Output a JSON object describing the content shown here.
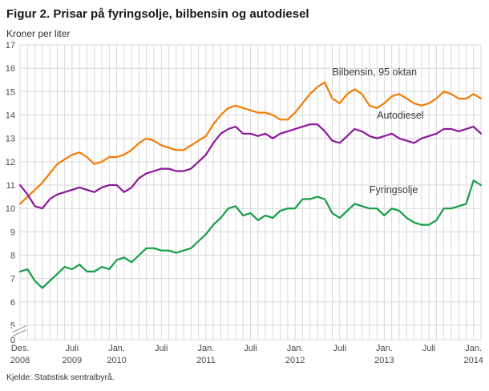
{
  "source": "Kjelde: Statistisk sentralbyrå.",
  "chart_data": {
    "type": "line",
    "title": "Figur 2. Prisar på fyringsolje, bilbensin og autodiesel",
    "ylabel": "Kroner per liter",
    "xlabel": "",
    "ylim": [
      5,
      17
    ],
    "axis_break_at_bottom": true,
    "grid": {
      "vertical": "monthly",
      "horizontal": "integer",
      "color": "#d9d9d9"
    },
    "y_ticks": [
      17,
      16,
      15,
      14,
      13,
      12,
      11,
      10,
      9,
      8,
      7,
      6,
      5,
      0
    ],
    "x_unit": "month",
    "x_range": "Des. 2008 – Feb. 2014",
    "x_ticks": [
      {
        "idx": 0,
        "line1": "Des.",
        "line2": "2008"
      },
      {
        "idx": 7,
        "line1": "Juli",
        "line2": "2009"
      },
      {
        "idx": 13,
        "line1": "Jan.",
        "line2": "2010"
      },
      {
        "idx": 19,
        "line1": "Juli",
        "line2": ""
      },
      {
        "idx": 25,
        "line1": "Jan.",
        "line2": "2011"
      },
      {
        "idx": 31,
        "line1": "Juli",
        "line2": ""
      },
      {
        "idx": 37,
        "line1": "Jan.",
        "line2": "2012"
      },
      {
        "idx": 43,
        "line1": "Juli",
        "line2": ""
      },
      {
        "idx": 49,
        "line1": "Jan.",
        "line2": "2013"
      },
      {
        "idx": 55,
        "line1": "Juli",
        "line2": ""
      },
      {
        "idx": 61,
        "line1": "Jan.",
        "line2": "2014"
      }
    ],
    "series": [
      {
        "id": "bilbensin",
        "name": "Bilbensin, 95 oktan",
        "color": "#f17c05",
        "label_at": {
          "idx": 42,
          "value": 15.7
        },
        "values": [
          10.2,
          10.5,
          10.8,
          11.1,
          11.5,
          11.9,
          12.1,
          12.3,
          12.4,
          12.2,
          11.9,
          12.0,
          12.2,
          12.2,
          12.3,
          12.5,
          12.8,
          13.0,
          12.9,
          12.7,
          12.6,
          12.5,
          12.5,
          12.7,
          12.9,
          13.1,
          13.6,
          14.0,
          14.3,
          14.4,
          14.3,
          14.2,
          14.1,
          14.1,
          14.0,
          13.8,
          13.8,
          14.1,
          14.5,
          14.9,
          15.2,
          15.4,
          14.7,
          14.5,
          14.9,
          15.1,
          14.9,
          14.4,
          14.3,
          14.5,
          14.8,
          14.9,
          14.7,
          14.5,
          14.4,
          14.5,
          14.7,
          15.0,
          14.9,
          14.7,
          14.7,
          14.9,
          14.7
        ]
      },
      {
        "id": "autodiesel",
        "name": "Autodiesel",
        "color": "#8c169b",
        "label_at": {
          "idx": 48,
          "value": 13.85
        },
        "values": [
          11.0,
          10.6,
          10.1,
          10.0,
          10.4,
          10.6,
          10.7,
          10.8,
          10.9,
          10.8,
          10.7,
          10.9,
          11.0,
          11.0,
          10.7,
          10.9,
          11.3,
          11.5,
          11.6,
          11.7,
          11.7,
          11.6,
          11.6,
          11.7,
          12.0,
          12.3,
          12.8,
          13.2,
          13.4,
          13.5,
          13.2,
          13.2,
          13.1,
          13.2,
          13.0,
          13.2,
          13.3,
          13.4,
          13.5,
          13.6,
          13.6,
          13.3,
          12.9,
          12.8,
          13.1,
          13.4,
          13.3,
          13.1,
          13.0,
          13.1,
          13.2,
          13.0,
          12.9,
          12.8,
          13.0,
          13.1,
          13.2,
          13.4,
          13.4,
          13.3,
          13.4,
          13.5,
          13.2
        ]
      },
      {
        "id": "fyringsolje",
        "name": "Fyringsolje",
        "color": "#149e45",
        "label_at": {
          "idx": 47,
          "value": 10.65
        },
        "values": [
          7.3,
          7.4,
          6.9,
          6.6,
          6.9,
          7.2,
          7.5,
          7.4,
          7.6,
          7.3,
          7.3,
          7.5,
          7.4,
          7.8,
          7.9,
          7.7,
          8.0,
          8.3,
          8.3,
          8.2,
          8.2,
          8.1,
          8.2,
          8.3,
          8.6,
          8.9,
          9.3,
          9.6,
          10.0,
          10.1,
          9.7,
          9.8,
          9.5,
          9.7,
          9.6,
          9.9,
          10.0,
          10.0,
          10.4,
          10.4,
          10.5,
          10.4,
          9.8,
          9.6,
          9.9,
          10.2,
          10.1,
          10.0,
          10.0,
          9.7,
          10.0,
          9.9,
          9.6,
          9.4,
          9.3,
          9.3,
          9.5,
          10.0,
          10.0,
          10.1,
          10.2,
          11.2,
          11.0
        ]
      }
    ]
  }
}
